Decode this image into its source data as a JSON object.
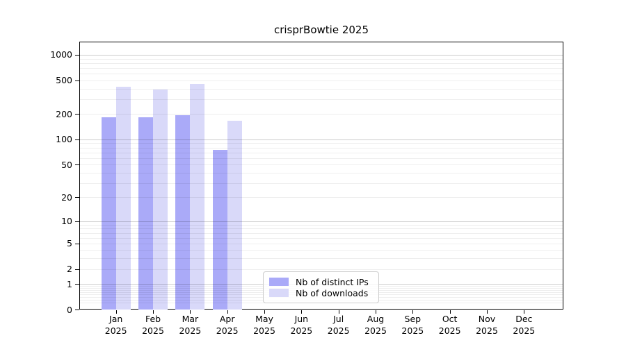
{
  "chart_data": {
    "type": "bar",
    "title": "crisprBowtie 2025",
    "year_sublabel": "2025",
    "categories": [
      "Jan",
      "Feb",
      "Mar",
      "Apr",
      "May",
      "Jun",
      "Jul",
      "Aug",
      "Sep",
      "Oct",
      "Nov",
      "Dec"
    ],
    "series": [
      {
        "name": "Nb of distinct IPs",
        "color": "#aaaaf8",
        "values": [
          183,
          183,
          195,
          75,
          0,
          0,
          0,
          0,
          0,
          0,
          0,
          0
        ]
      },
      {
        "name": "Nb of downloads",
        "color": "#d9d9f9",
        "values": [
          420,
          390,
          455,
          165,
          0,
          0,
          0,
          0,
          0,
          0,
          0,
          0
        ]
      }
    ],
    "y_ticks": [
      0,
      1,
      2,
      5,
      10,
      20,
      50,
      100,
      200,
      500,
      1000
    ],
    "y_scale": "log1p",
    "ylim": [
      0,
      1430
    ],
    "grid": "horizontal major+minor log gridlines",
    "legend_position": "lower center inside plot",
    "colors": {
      "axis": "#000000",
      "major_grid": "rgba(0,0,0,0.20)",
      "minor_grid": "rgba(0,0,0,0.065)",
      "text": "#000000",
      "background": "#ffffff"
    }
  }
}
